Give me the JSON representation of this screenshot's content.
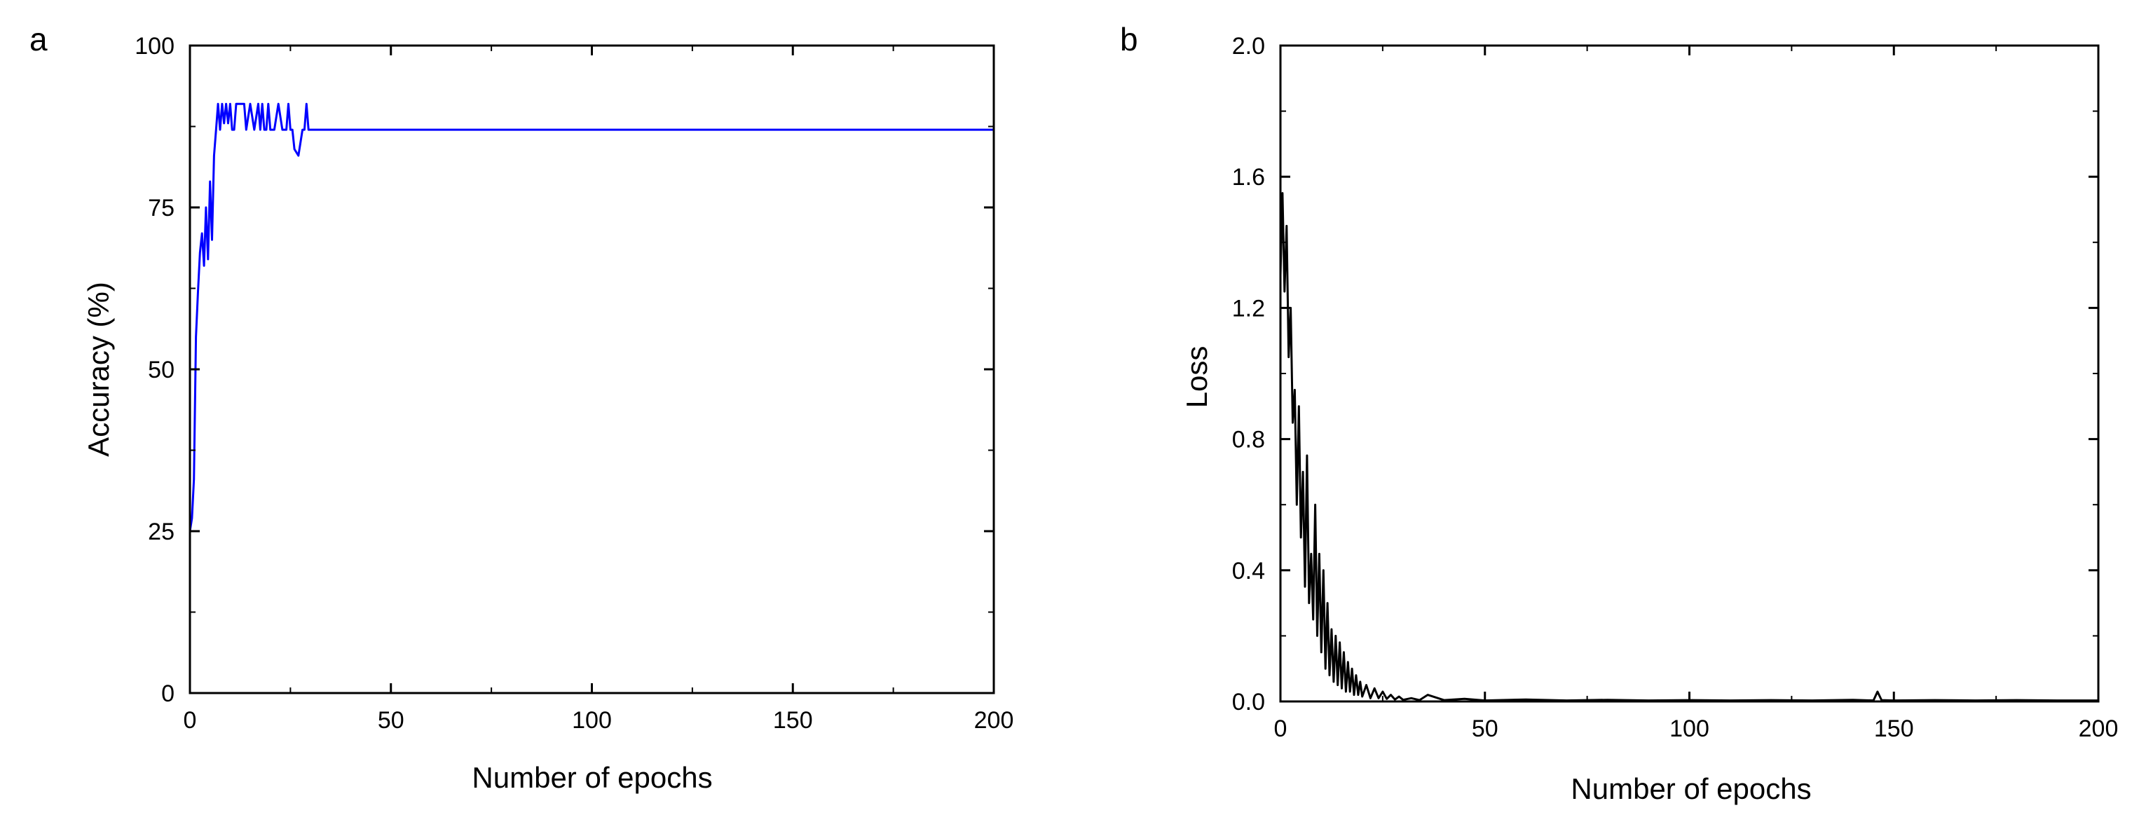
{
  "chart_data": [
    {
      "panel_label": "a",
      "type": "line",
      "title": "",
      "xlabel": "Number of epochs",
      "ylabel": "Accuracy (%)",
      "xlim": [
        0,
        200
      ],
      "ylim": [
        0,
        100
      ],
      "xticks": [
        0,
        50,
        100,
        150,
        200
      ],
      "yticks": [
        0,
        25,
        50,
        75,
        100
      ],
      "x_minor_ticks": [
        25,
        75,
        125,
        175
      ],
      "y_minor_ticks": [
        12.5,
        37.5,
        62.5,
        87.5
      ],
      "grid": false,
      "line_color": "#0000ff",
      "series": [
        {
          "x": [
            0,
            0.5,
            1,
            1.5,
            2,
            2.5,
            3,
            3.5,
            4,
            4.5,
            5,
            5.5,
            6,
            6.5,
            7,
            7.5,
            8,
            8.5,
            9,
            9.5,
            10,
            10.5,
            11,
            11.5,
            12,
            12.5,
            13,
            13.5,
            14,
            15,
            16,
            17,
            17.5,
            18,
            18.5,
            19,
            19.5,
            20,
            20.5,
            21,
            22,
            23,
            24,
            24.5,
            25,
            25.5,
            26,
            27,
            27.5,
            28,
            28.5,
            29,
            29.5,
            30,
            31,
            31.5,
            32,
            32.5,
            33,
            200
          ],
          "y": [
            25,
            27,
            33,
            55,
            62,
            68,
            71,
            66,
            75,
            67,
            79,
            70,
            83,
            87,
            91,
            87,
            91,
            88,
            91,
            88,
            91,
            87,
            87,
            91,
            91,
            91,
            91,
            91,
            87,
            91,
            87,
            91,
            87,
            91,
            87,
            87,
            91,
            87,
            87,
            87,
            91,
            87,
            87,
            91,
            87,
            87,
            84,
            83,
            85,
            87,
            87,
            91,
            87,
            87,
            87,
            87,
            87,
            87,
            87,
            87
          ]
        }
      ]
    },
    {
      "panel_label": "b",
      "type": "line",
      "title": "",
      "xlabel": "Number of epochs",
      "ylabel": "Loss",
      "xlim": [
        0,
        200
      ],
      "ylim": [
        0,
        2.0
      ],
      "xticks": [
        0,
        50,
        100,
        150,
        200
      ],
      "yticks": [
        0.0,
        0.4,
        0.8,
        1.2,
        1.6,
        2.0
      ],
      "x_minor_ticks": [
        25,
        75,
        125,
        175
      ],
      "y_minor_ticks": [
        0.2,
        0.6,
        1.0,
        1.4,
        1.8
      ],
      "grid": false,
      "line_color": "#000000",
      "series": [
        {
          "x": [
            0,
            0.5,
            1,
            1.5,
            2,
            2.5,
            3,
            3.5,
            4,
            4.5,
            5,
            5.5,
            6,
            6.5,
            7,
            7.5,
            8,
            8.5,
            9,
            9.5,
            10,
            10.5,
            11,
            11.5,
            12,
            12.5,
            13,
            13.5,
            14,
            14.5,
            15,
            15.5,
            16,
            16.5,
            17,
            17.5,
            18,
            18.5,
            19,
            19.5,
            20,
            21,
            22,
            23,
            24,
            25,
            26,
            27,
            28,
            29,
            30,
            32,
            34,
            36,
            40,
            45,
            50,
            60,
            70,
            80,
            90,
            100,
            110,
            120,
            130,
            140,
            145,
            146,
            147,
            150,
            160,
            170,
            180,
            190,
            200
          ],
          "y": [
            1.3,
            1.55,
            1.25,
            1.45,
            1.05,
            1.2,
            0.85,
            0.95,
            0.6,
            0.9,
            0.5,
            0.7,
            0.35,
            0.75,
            0.3,
            0.45,
            0.25,
            0.6,
            0.2,
            0.45,
            0.15,
            0.4,
            0.1,
            0.3,
            0.08,
            0.22,
            0.06,
            0.2,
            0.05,
            0.18,
            0.04,
            0.15,
            0.03,
            0.12,
            0.03,
            0.1,
            0.02,
            0.08,
            0.02,
            0.06,
            0.015,
            0.05,
            0.01,
            0.04,
            0.01,
            0.03,
            0.008,
            0.02,
            0.006,
            0.015,
            0.005,
            0.01,
            0.004,
            0.02,
            0.004,
            0.008,
            0.003,
            0.006,
            0.003,
            0.005,
            0.003,
            0.004,
            0.003,
            0.004,
            0.003,
            0.005,
            0.003,
            0.03,
            0.004,
            0.003,
            0.004,
            0.003,
            0.004,
            0.003,
            0.003
          ]
        }
      ]
    }
  ]
}
